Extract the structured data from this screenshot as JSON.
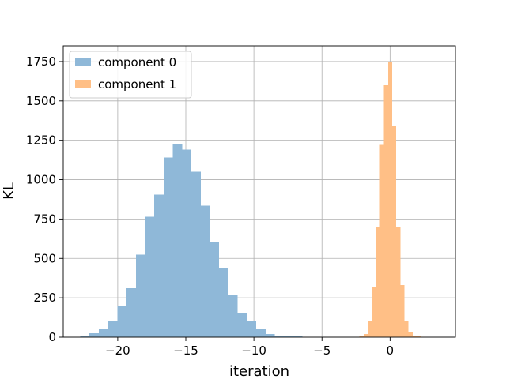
{
  "chart_data": {
    "type": "bar",
    "title": "",
    "xlabel": "iteration",
    "ylabel": "KL",
    "xlim": [
      -24.0,
      4.8
    ],
    "ylim": [
      0,
      1850
    ],
    "xticks": [
      -20,
      -15,
      -10,
      -5,
      0
    ],
    "xtick_labels": [
      "−20",
      "−15",
      "−10",
      "−5",
      "0"
    ],
    "yticks": [
      0,
      250,
      500,
      750,
      1000,
      1250,
      1500,
      1750
    ],
    "ytick_labels": [
      "0",
      "250",
      "500",
      "750",
      "1000",
      "1250",
      "1500",
      "1750"
    ],
    "grid": true,
    "legend_position": "top-left",
    "series": [
      {
        "name": "component 0",
        "color": "#8fb8d8",
        "bin_edges": [
          -22.75,
          -22.07,
          -21.39,
          -20.71,
          -20.03,
          -19.35,
          -18.67,
          -17.99,
          -17.31,
          -16.63,
          -15.95,
          -15.27,
          -14.59,
          -13.91,
          -13.23,
          -12.55,
          -11.87,
          -11.19,
          -10.51,
          -9.83,
          -9.15,
          -8.47,
          -7.79,
          -7.11,
          -6.43
        ],
        "values": [
          5,
          25,
          50,
          100,
          195,
          310,
          525,
          765,
          905,
          1140,
          1225,
          1190,
          1050,
          835,
          605,
          440,
          270,
          155,
          100,
          50,
          20,
          10,
          5,
          5
        ]
      },
      {
        "name": "component 1",
        "color": "#ffbf86",
        "bin_edges": [
          -2.25,
          -1.95,
          -1.65,
          -1.35,
          -1.05,
          -0.75,
          -0.45,
          -0.15,
          0.15,
          0.45,
          0.75,
          1.05,
          1.35,
          1.65,
          1.95,
          2.25,
          2.55
        ],
        "values": [
          5,
          20,
          100,
          320,
          700,
          1220,
          1600,
          1745,
          1340,
          700,
          330,
          100,
          35,
          10,
          5,
          2
        ]
      }
    ]
  }
}
